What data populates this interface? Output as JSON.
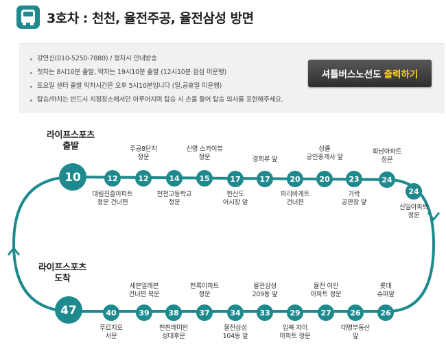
{
  "header": {
    "icon": "bus-icon",
    "title": "3호차 : 천천, 율전주공, 율전삼성 방면"
  },
  "notice": {
    "items": [
      "강연신(010-5250-7880) / 정차시 안내방송",
      "첫차는 8시10분 출발, 막차는 19시10분 출발 (12시10분 점심 미운행)",
      "토요일 센터 출발 막차시간은 오후 5시10분입니다 (일,공휴일 미운행)",
      "탑승/하차는 반드시 지정장소에서만 이루어지며 탑승 시 손을 들어 탑승 의사를 표현해주세요."
    ]
  },
  "print_button": {
    "label": "셔틀버스노선도",
    "highlight": "출력하기",
    "highlight_color": "#ffd21c"
  },
  "route": {
    "line_color": "#1e8a8e",
    "start": {
      "line1": "라이프스포츠",
      "line2": "출발",
      "time": "10"
    },
    "end": {
      "line1": "라이프스포츠",
      "line2": "도착",
      "time": "47"
    },
    "top_stops": [
      {
        "time": "12",
        "label": "대림진흥아파트\n정문 건너편"
      },
      {
        "time": "12",
        "label": "주공8단지\n정문"
      },
      {
        "time": "14",
        "label": "천천고등학교\n정문"
      },
      {
        "time": "15",
        "label": "신명 스카이뷰\n정문"
      },
      {
        "time": "17",
        "label": "한산도\n어시장 앞"
      },
      {
        "time": "17",
        "label": "경희루 앞"
      },
      {
        "time": "20",
        "label": "파리바게트\n건너편"
      },
      {
        "time": "20",
        "label": "상률\n공인중개사 앞"
      },
      {
        "time": "23",
        "label": "가락\n공판장 앞"
      },
      {
        "time": "24",
        "label": "화남아파트\n정문"
      },
      {
        "time": "24",
        "label": "신일아파트\n정문"
      }
    ],
    "bottom_stops": [
      {
        "time": "40",
        "label": "푸르지오\n서문"
      },
      {
        "time": "39",
        "label": "세븐일레븐\n건너편 북문"
      },
      {
        "time": "38",
        "label": "천천래미안\n성대후문"
      },
      {
        "time": "37",
        "label": "천록아파트\n정문"
      },
      {
        "time": "34",
        "label": "율전삼성\n104동 앞"
      },
      {
        "time": "33",
        "label": "율전삼성\n209동 앞"
      },
      {
        "time": "29",
        "label": "입북 자이\n아파트 정문"
      },
      {
        "time": "27",
        "label": "율전 이안\n아파트 정문"
      },
      {
        "time": "26",
        "label": "대명부동산\n앞"
      },
      {
        "time": "26",
        "label": "롯데\n슈퍼앞"
      }
    ]
  }
}
